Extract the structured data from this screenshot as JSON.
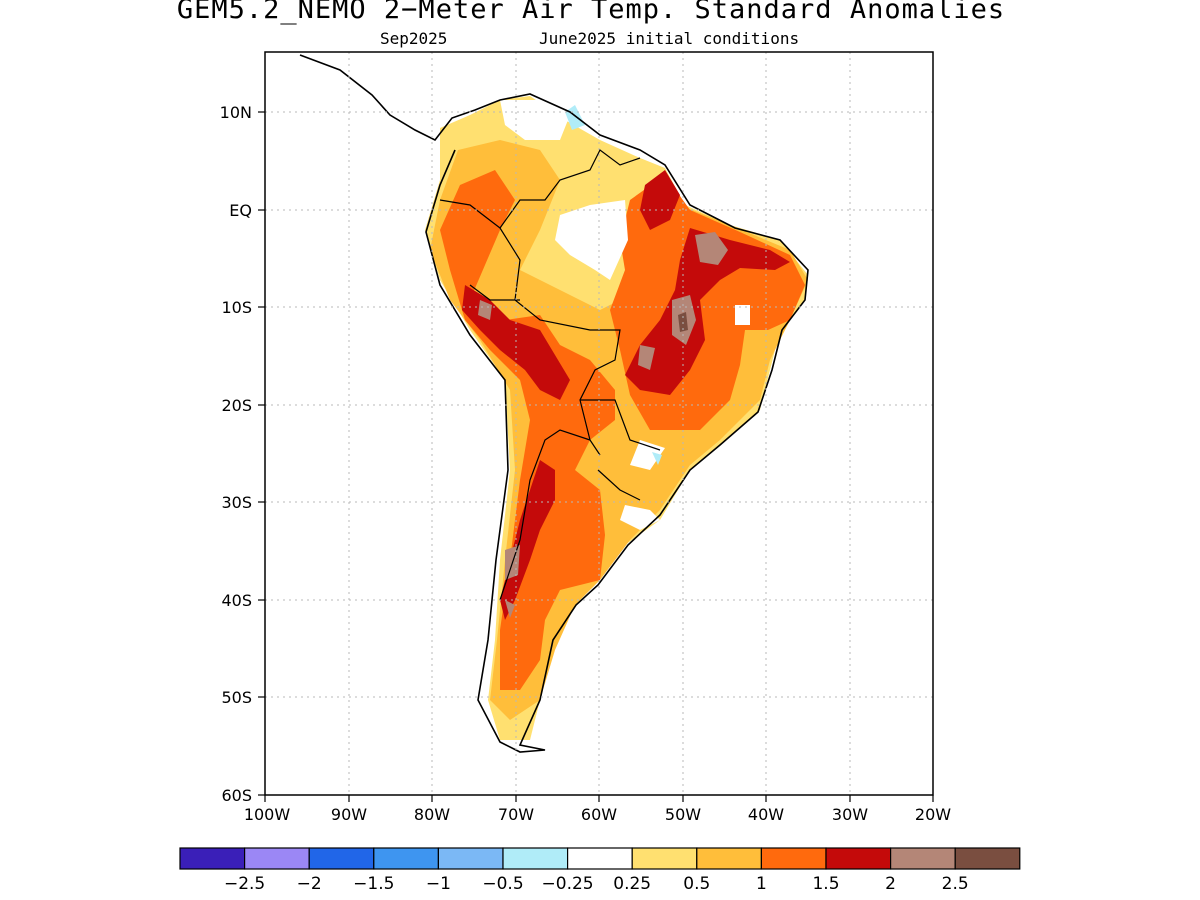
{
  "title": "GEM5.2_NEMO 2−Meter Air Temp. Standard Anomalies",
  "subtitle": {
    "valid_month": "Sep2025",
    "init": "June2025 initial conditions"
  },
  "axes": {
    "y_ticks": [
      "10N",
      "EQ",
      "10S",
      "20S",
      "30S",
      "40S",
      "50S",
      "60S"
    ],
    "x_ticks": [
      "100W",
      "90W",
      "80W",
      "70W",
      "60W",
      "50W",
      "40W",
      "30W",
      "20W"
    ]
  },
  "colorbar": {
    "colors": [
      "#3a1fb8",
      "#9b87f5",
      "#2166e8",
      "#3e95f0",
      "#7bb8f5",
      "#b0ecf8",
      "#ffffff",
      "#ffe070",
      "#ffbe3a",
      "#ff6a0d",
      "#c40a0a",
      "#b48677",
      "#7a4e40"
    ],
    "labels": [
      "−2.5",
      "−2",
      "−1.5",
      "−1",
      "−0.5",
      "−0.25",
      "0.25",
      "0.5",
      "1",
      "1.5",
      "2",
      "2.5"
    ]
  },
  "chart_data": {
    "type": "heatmap",
    "title": "GEM5.2_NEMO 2−Meter Air Temp. Standard Anomalies",
    "subtitle": "Sep2025 June2025 initial conditions",
    "xlim": [
      -100,
      -20
    ],
    "ylim": [
      -60,
      15
    ],
    "levels": [
      -2.5,
      -2,
      -1.5,
      -1,
      -0.5,
      -0.25,
      0.25,
      0.5,
      1,
      1.5,
      2,
      2.5
    ],
    "grid": true
  }
}
